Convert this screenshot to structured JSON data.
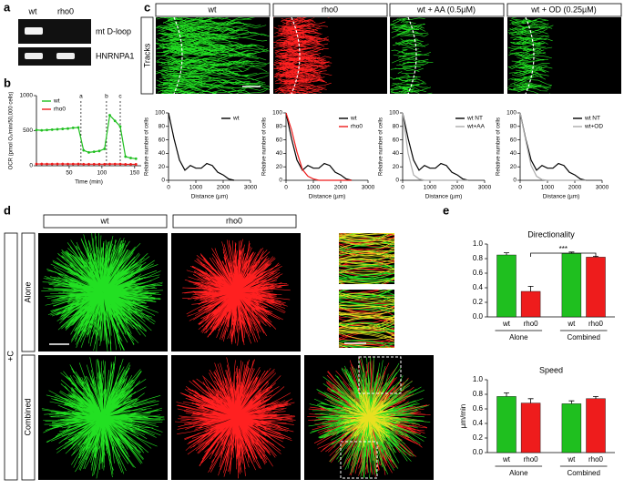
{
  "panels": {
    "a": {
      "label": "a",
      "lanes": [
        "wt",
        "rho0"
      ],
      "rows": [
        "mt D-loop",
        "HNRNPA1"
      ]
    },
    "b": {
      "label": "b"
    },
    "c": {
      "label": "c",
      "columns": [
        "wt",
        "rho0",
        "wt + AA (0.5µM)",
        "wt + OD (0.25µM)"
      ],
      "row_label": "Tracks"
    },
    "d": {
      "label": "d",
      "columns": [
        "wt",
        "rho0"
      ],
      "condition": "+C",
      "rows": [
        "Alone",
        "Combined"
      ]
    },
    "e": {
      "label": "e"
    }
  },
  "chart_data": [
    {
      "type": "line",
      "xlabel": "Time (min)",
      "ylabel": "OCR (pmol O₂/min/50,000 cells)",
      "legend": "upper left",
      "x": [
        0,
        8,
        16,
        24,
        32,
        40,
        48,
        56,
        64,
        72,
        80,
        88,
        96,
        104,
        112,
        120,
        128,
        136,
        144,
        152
      ],
      "series": [
        {
          "name": "wt",
          "color": "#1fbf1f",
          "values": [
            510,
            505,
            510,
            515,
            520,
            525,
            530,
            540,
            545,
            220,
            190,
            200,
            210,
            240,
            720,
            640,
            560,
            130,
            110,
            100
          ]
        },
        {
          "name": "rho0",
          "color": "#ee1c1c",
          "values": [
            25,
            25,
            24,
            24,
            25,
            25,
            24,
            24,
            25,
            22,
            22,
            22,
            22,
            22,
            24,
            24,
            24,
            20,
            20,
            20
          ]
        }
      ],
      "markers": [
        {
          "label": "a",
          "x": 68
        },
        {
          "label": "b",
          "x": 107
        },
        {
          "label": "c",
          "x": 128
        }
      ],
      "xlim": [
        0,
        160
      ],
      "ylim": [
        0,
        1000
      ],
      "xticks": [
        50,
        100,
        150
      ],
      "yticks": [
        0,
        500,
        1000
      ]
    },
    {
      "type": "line",
      "xlabel": "Distance (µm)",
      "ylabel": "Relative number of cells",
      "legend": "upper right",
      "x": [
        0,
        200,
        400,
        600,
        800,
        1000,
        1200,
        1400,
        1600,
        1800,
        2000,
        2200,
        2400
      ],
      "series": [
        {
          "name": "wt",
          "color": "#000000",
          "values": [
            100,
            62,
            30,
            15,
            22,
            18,
            18,
            25,
            22,
            12,
            8,
            2,
            0
          ]
        }
      ],
      "xlim": [
        0,
        3000
      ],
      "ylim": [
        0,
        100
      ],
      "xticks": [
        0,
        1000,
        2000,
        3000
      ],
      "yticks": [
        0,
        20,
        40,
        60,
        80,
        100
      ]
    },
    {
      "type": "line",
      "xlabel": "Distance (µm)",
      "ylabel": "Relative number of cells",
      "legend": "upper right",
      "x": [
        0,
        200,
        400,
        600,
        800,
        1000,
        1200,
        1400,
        1600,
        1800,
        2000,
        2200,
        2400
      ],
      "series": [
        {
          "name": "wt",
          "color": "#000000",
          "values": [
            100,
            62,
            30,
            15,
            22,
            18,
            18,
            25,
            22,
            12,
            8,
            2,
            0
          ]
        },
        {
          "name": "rho0",
          "color": "#ee1c1c",
          "values": [
            100,
            75,
            42,
            16,
            6,
            2,
            0,
            0,
            0,
            0,
            0,
            0,
            0
          ]
        }
      ],
      "xlim": [
        0,
        3000
      ],
      "ylim": [
        0,
        100
      ],
      "xticks": [
        0,
        1000,
        2000,
        3000
      ],
      "yticks": [
        0,
        20,
        40,
        60,
        80,
        100
      ]
    },
    {
      "type": "line",
      "xlabel": "Distance (µm)",
      "ylabel": "Relative number of cells",
      "legend": "upper right",
      "x": [
        0,
        200,
        400,
        600,
        800,
        1000,
        1200,
        1400,
        1600,
        1800,
        2000,
        2200,
        2400
      ],
      "series": [
        {
          "name": "wt NT",
          "color": "#000000",
          "values": [
            100,
            62,
            30,
            15,
            22,
            18,
            18,
            25,
            22,
            12,
            8,
            2,
            0
          ]
        },
        {
          "name": "wt+AA",
          "color": "#aaaaaa",
          "values": [
            100,
            40,
            8,
            2,
            0,
            0,
            0,
            0,
            0,
            0,
            0,
            0,
            0
          ]
        }
      ],
      "xlim": [
        0,
        3000
      ],
      "ylim": [
        0,
        100
      ],
      "xticks": [
        0,
        1000,
        2000,
        3000
      ],
      "yticks": [
        0,
        20,
        40,
        60,
        80,
        100
      ]
    },
    {
      "type": "line",
      "xlabel": "Distance (µm)",
      "ylabel": "Relative number of cells",
      "legend": "upper right",
      "x": [
        0,
        200,
        400,
        600,
        800,
        1000,
        1200,
        1400,
        1600,
        1800,
        2000,
        2200,
        2400
      ],
      "series": [
        {
          "name": "wt NT",
          "color": "#000000",
          "values": [
            100,
            62,
            30,
            15,
            22,
            18,
            18,
            25,
            22,
            12,
            8,
            2,
            0
          ]
        },
        {
          "name": "wt+OD",
          "color": "#aaaaaa",
          "values": [
            100,
            60,
            22,
            6,
            1,
            0,
            0,
            0,
            0,
            0,
            0,
            0,
            0
          ]
        }
      ],
      "xlim": [
        0,
        3000
      ],
      "ylim": [
        0,
        100
      ],
      "xticks": [
        0,
        1000,
        2000,
        3000
      ],
      "yticks": [
        0,
        20,
        40,
        60,
        80,
        100
      ]
    },
    {
      "type": "bar",
      "title": "Directionality",
      "significance": "***",
      "categories": [
        "wt",
        "rho0",
        "wt",
        "rho0"
      ],
      "groups": [
        "Alone",
        "Combined"
      ],
      "values": [
        0.85,
        0.35,
        0.87,
        0.82
      ],
      "errors": [
        0.03,
        0.07,
        0.02,
        0.01
      ],
      "colors": [
        "#1fbf1f",
        "#ee1c1c",
        "#1fbf1f",
        "#ee1c1c"
      ],
      "ylim": [
        0,
        1
      ],
      "yticks": [
        {
          "value": 0,
          "label": "0.0"
        },
        0.2,
        0.4,
        0.6,
        0.8,
        {
          "value": 1,
          "label": "1.0"
        }
      ]
    },
    {
      "type": "bar",
      "title": "Speed",
      "ylabel": "µm/min",
      "categories": [
        "wt",
        "rho0",
        "wt",
        "rho0"
      ],
      "groups": [
        "Alone",
        "Combined"
      ],
      "values": [
        0.77,
        0.68,
        0.67,
        0.74
      ],
      "errors": [
        0.05,
        0.06,
        0.04,
        0.03
      ],
      "colors": [
        "#1fbf1f",
        "#ee1c1c",
        "#1fbf1f",
        "#ee1c1c"
      ],
      "ylim": [
        0,
        1
      ],
      "yticks": [
        {
          "value": 0,
          "label": "0.0"
        },
        0.2,
        0.4,
        0.6,
        0.8,
        {
          "value": 1,
          "label": "1.0"
        }
      ]
    }
  ]
}
